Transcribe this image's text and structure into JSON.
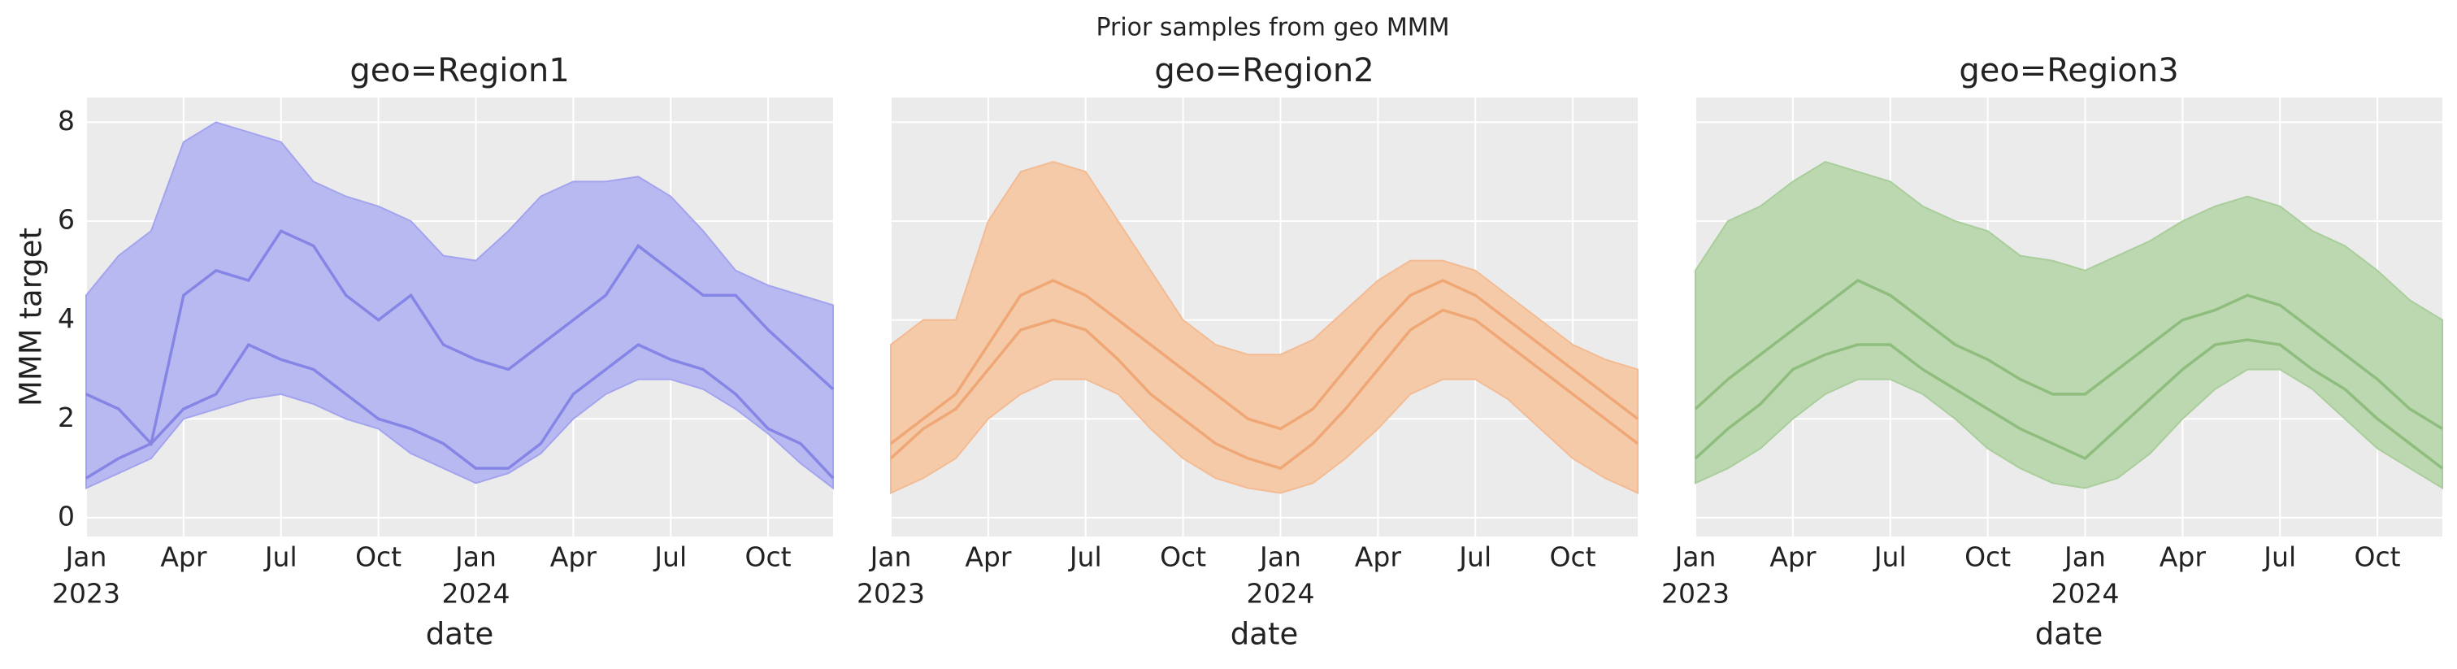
{
  "title": "Prior samples from geo MMM",
  "chart_data": [
    {
      "type": "band_line",
      "title": "geo=Region1",
      "xlabel": "date",
      "ylabel": "MMM target",
      "x": [
        "2023-01",
        "2023-02",
        "2023-03",
        "2023-04",
        "2023-05",
        "2023-06",
        "2023-07",
        "2023-08",
        "2023-09",
        "2023-10",
        "2023-11",
        "2023-12",
        "2024-01",
        "2024-02",
        "2024-03",
        "2024-04",
        "2024-05",
        "2024-06",
        "2024-07",
        "2024-08",
        "2024-09",
        "2024-10",
        "2024-11",
        "2024-12"
      ],
      "xlim": [
        "2023-01",
        "2024-12"
      ],
      "xticks": [
        {
          "value": "2023-01",
          "label": "Jan",
          "sublabel": "2023"
        },
        {
          "value": "2023-04",
          "label": "Apr"
        },
        {
          "value": "2023-07",
          "label": "Jul"
        },
        {
          "value": "2023-10",
          "label": "Oct"
        },
        {
          "value": "2024-01",
          "label": "Jan",
          "sublabel": "2024"
        },
        {
          "value": "2024-04",
          "label": "Apr"
        },
        {
          "value": "2024-07",
          "label": "Jul"
        },
        {
          "value": "2024-10",
          "label": "Oct"
        }
      ],
      "ylim": [
        -0.38,
        8.5
      ],
      "yticks": [
        0,
        2,
        4,
        6,
        8
      ],
      "show_ytick_labels": true,
      "grid": true,
      "band": {
        "color": "#b9b9f2",
        "edge": "#a3a3ee",
        "upper": [
          4.5,
          5.3,
          5.8,
          7.6,
          8.0,
          7.8,
          7.6,
          6.8,
          6.5,
          6.3,
          6.0,
          5.3,
          5.2,
          5.8,
          6.5,
          6.8,
          6.8,
          6.9,
          6.5,
          5.8,
          5.0,
          4.7,
          4.5,
          4.3
        ],
        "lower": [
          0.6,
          0.9,
          1.2,
          2.0,
          2.2,
          2.4,
          2.5,
          2.3,
          2.0,
          1.8,
          1.3,
          1.0,
          0.7,
          0.9,
          1.3,
          2.0,
          2.5,
          2.8,
          2.8,
          2.6,
          2.2,
          1.7,
          1.1,
          0.6
        ]
      },
      "series": [
        {
          "color": "#8585e6",
          "values": [
            2.5,
            2.2,
            1.5,
            4.5,
            5.0,
            4.8,
            5.8,
            5.5,
            4.5,
            4.0,
            4.5,
            3.5,
            3.2,
            3.0,
            3.5,
            4.0,
            4.5,
            5.5,
            5.0,
            4.5,
            4.5,
            3.8,
            3.2,
            2.6
          ]
        },
        {
          "color": "#8585e6",
          "values": [
            0.8,
            1.2,
            1.5,
            2.2,
            2.5,
            3.5,
            3.2,
            3.0,
            2.5,
            2.0,
            1.8,
            1.5,
            1.0,
            1.0,
            1.5,
            2.5,
            3.0,
            3.5,
            3.2,
            3.0,
            2.5,
            1.8,
            1.5,
            0.8
          ]
        }
      ]
    },
    {
      "type": "band_line",
      "title": "geo=Region2",
      "xlabel": "date",
      "x": [
        "2023-01",
        "2023-02",
        "2023-03",
        "2023-04",
        "2023-05",
        "2023-06",
        "2023-07",
        "2023-08",
        "2023-09",
        "2023-10",
        "2023-11",
        "2023-12",
        "2024-01",
        "2024-02",
        "2024-03",
        "2024-04",
        "2024-05",
        "2024-06",
        "2024-07",
        "2024-08",
        "2024-09",
        "2024-10",
        "2024-11",
        "2024-12"
      ],
      "xlim": [
        "2023-01",
        "2024-12"
      ],
      "xticks": [
        {
          "value": "2023-01",
          "label": "Jan",
          "sublabel": "2023"
        },
        {
          "value": "2023-04",
          "label": "Apr"
        },
        {
          "value": "2023-07",
          "label": "Jul"
        },
        {
          "value": "2023-10",
          "label": "Oct"
        },
        {
          "value": "2024-01",
          "label": "Jan",
          "sublabel": "2024"
        },
        {
          "value": "2024-04",
          "label": "Apr"
        },
        {
          "value": "2024-07",
          "label": "Jul"
        },
        {
          "value": "2024-10",
          "label": "Oct"
        }
      ],
      "ylim": [
        -0.38,
        8.5
      ],
      "yticks": [
        0,
        2,
        4,
        6,
        8
      ],
      "show_ytick_labels": false,
      "grid": true,
      "band": {
        "color": "#f5caa9",
        "edge": "#f3bb93",
        "upper": [
          3.5,
          4.0,
          4.0,
          6.0,
          7.0,
          7.2,
          7.0,
          6.0,
          5.0,
          4.0,
          3.5,
          3.3,
          3.3,
          3.6,
          4.2,
          4.8,
          5.2,
          5.2,
          5.0,
          4.5,
          4.0,
          3.5,
          3.2,
          3.0
        ],
        "lower": [
          0.5,
          0.8,
          1.2,
          2.0,
          2.5,
          2.8,
          2.8,
          2.5,
          1.8,
          1.2,
          0.8,
          0.6,
          0.5,
          0.7,
          1.2,
          1.8,
          2.5,
          2.8,
          2.8,
          2.4,
          1.8,
          1.2,
          0.8,
          0.5
        ]
      },
      "series": [
        {
          "color": "#f0a776",
          "values": [
            1.5,
            2.0,
            2.5,
            3.5,
            4.5,
            4.8,
            4.5,
            4.0,
            3.5,
            3.0,
            2.5,
            2.0,
            1.8,
            2.2,
            3.0,
            3.8,
            4.5,
            4.8,
            4.5,
            4.0,
            3.5,
            3.0,
            2.5,
            2.0
          ]
        },
        {
          "color": "#f0a776",
          "values": [
            1.2,
            1.8,
            2.2,
            3.0,
            3.8,
            4.0,
            3.8,
            3.2,
            2.5,
            2.0,
            1.5,
            1.2,
            1.0,
            1.5,
            2.2,
            3.0,
            3.8,
            4.2,
            4.0,
            3.5,
            3.0,
            2.5,
            2.0,
            1.5
          ]
        }
      ]
    },
    {
      "type": "band_line",
      "title": "geo=Region3",
      "xlabel": "date",
      "x": [
        "2023-01",
        "2023-02",
        "2023-03",
        "2023-04",
        "2023-05",
        "2023-06",
        "2023-07",
        "2023-08",
        "2023-09",
        "2023-10",
        "2023-11",
        "2023-12",
        "2024-01",
        "2024-02",
        "2024-03",
        "2024-04",
        "2024-05",
        "2024-06",
        "2024-07",
        "2024-08",
        "2024-09",
        "2024-10",
        "2024-11",
        "2024-12"
      ],
      "xlim": [
        "2023-01",
        "2024-12"
      ],
      "xticks": [
        {
          "value": "2023-01",
          "label": "Jan",
          "sublabel": "2023"
        },
        {
          "value": "2023-04",
          "label": "Apr"
        },
        {
          "value": "2023-07",
          "label": "Jul"
        },
        {
          "value": "2023-10",
          "label": "Oct"
        },
        {
          "value": "2024-01",
          "label": "Jan",
          "sublabel": "2024"
        },
        {
          "value": "2024-04",
          "label": "Apr"
        },
        {
          "value": "2024-07",
          "label": "Jul"
        },
        {
          "value": "2024-10",
          "label": "Oct"
        }
      ],
      "ylim": [
        -0.38,
        8.5
      ],
      "yticks": [
        0,
        2,
        4,
        6,
        8
      ],
      "show_ytick_labels": false,
      "grid": true,
      "band": {
        "color": "#bcd8b0",
        "edge": "#a9cd9b",
        "upper": [
          5.0,
          6.0,
          6.3,
          6.8,
          7.2,
          7.0,
          6.8,
          6.3,
          6.0,
          5.8,
          5.3,
          5.2,
          5.0,
          5.3,
          5.6,
          6.0,
          6.3,
          6.5,
          6.3,
          5.8,
          5.5,
          5.0,
          4.4,
          4.0
        ],
        "lower": [
          0.7,
          1.0,
          1.4,
          2.0,
          2.5,
          2.8,
          2.8,
          2.5,
          2.0,
          1.4,
          1.0,
          0.7,
          0.6,
          0.8,
          1.3,
          2.0,
          2.6,
          3.0,
          3.0,
          2.6,
          2.0,
          1.4,
          1.0,
          0.6
        ]
      },
      "series": [
        {
          "color": "#8fbd7e",
          "values": [
            2.2,
            2.8,
            3.3,
            3.8,
            4.3,
            4.8,
            4.5,
            4.0,
            3.5,
            3.2,
            2.8,
            2.5,
            2.5,
            3.0,
            3.5,
            4.0,
            4.2,
            4.5,
            4.3,
            3.8,
            3.3,
            2.8,
            2.2,
            1.8
          ]
        },
        {
          "color": "#8fbd7e",
          "values": [
            1.2,
            1.8,
            2.3,
            3.0,
            3.3,
            3.5,
            3.5,
            3.0,
            2.6,
            2.2,
            1.8,
            1.5,
            1.2,
            1.8,
            2.4,
            3.0,
            3.5,
            3.6,
            3.5,
            3.0,
            2.6,
            2.0,
            1.5,
            1.0
          ]
        }
      ]
    }
  ]
}
